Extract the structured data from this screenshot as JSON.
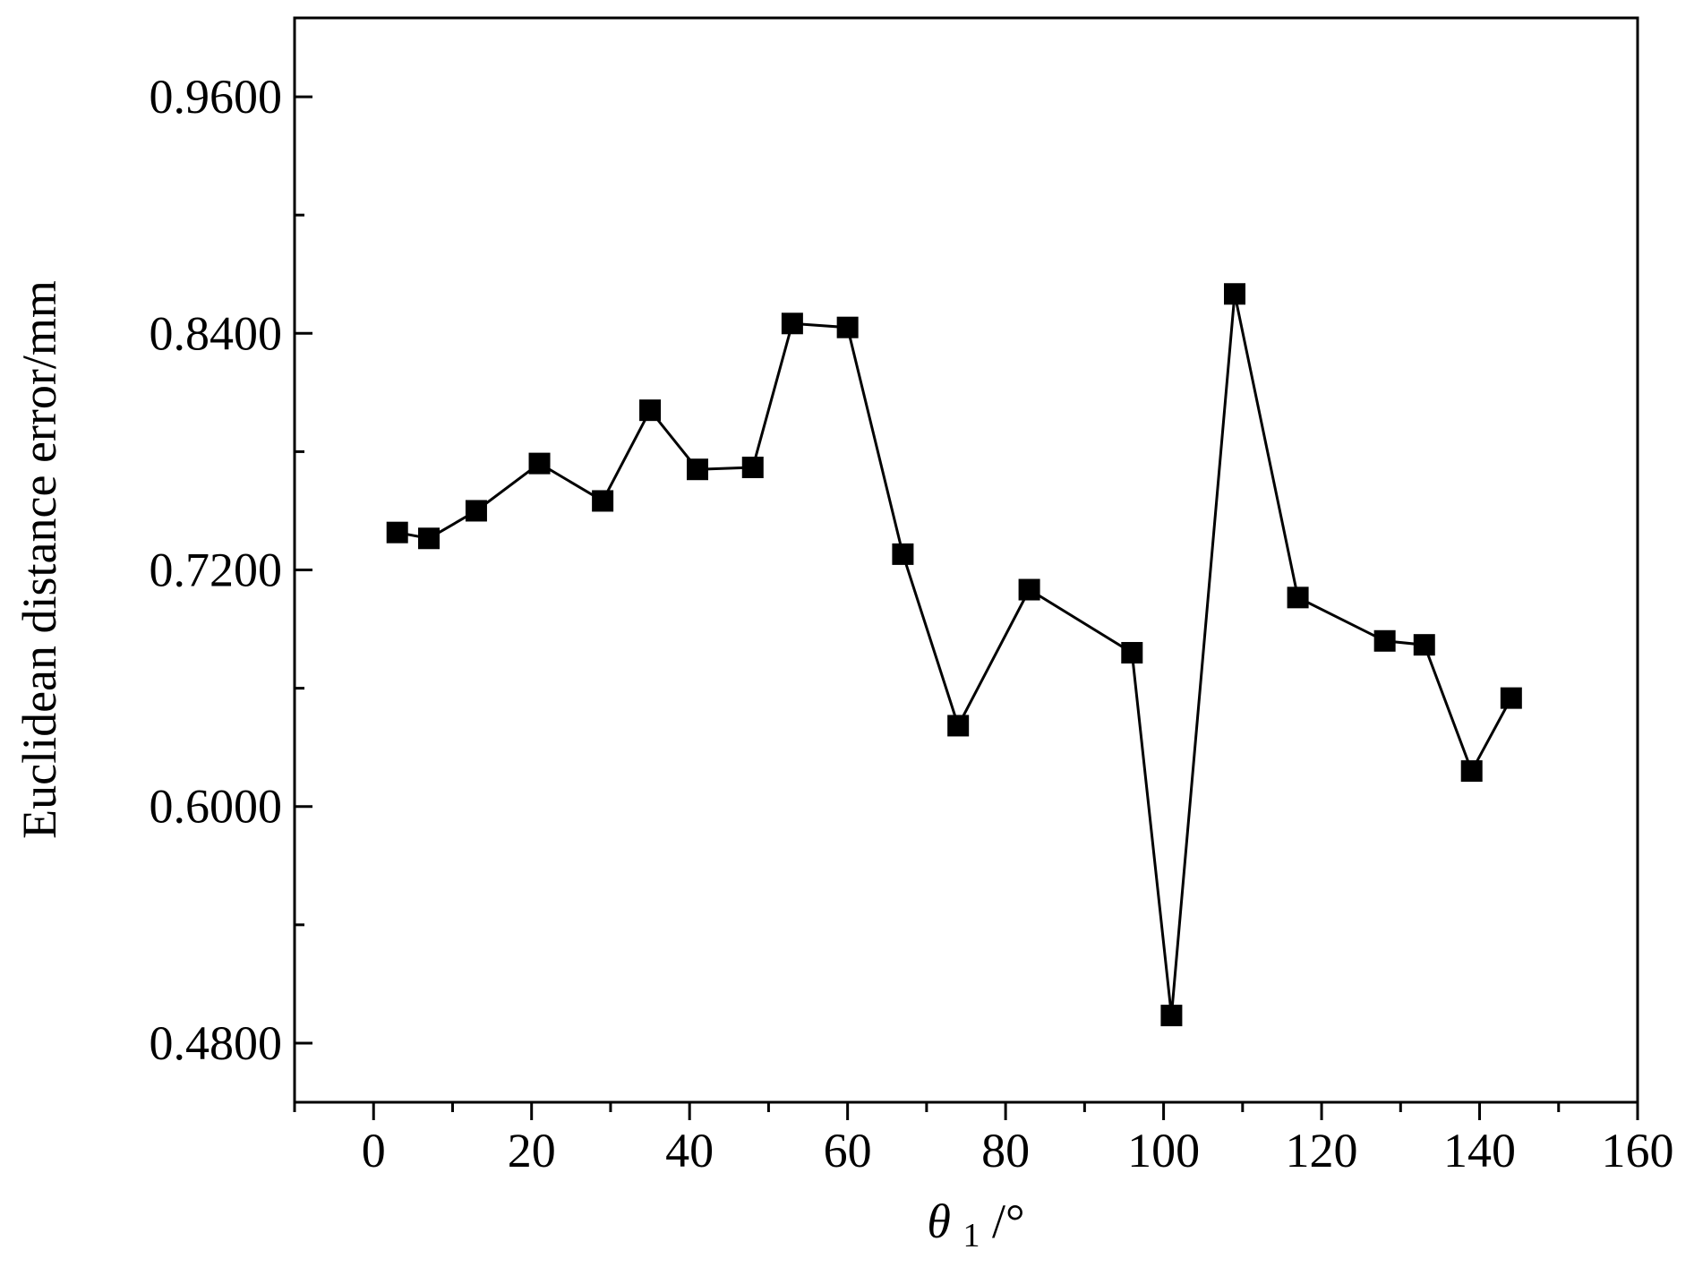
{
  "chart_data": {
    "type": "line",
    "title": "",
    "xlabel": {
      "symbol": "θ",
      "subscript": "1",
      "unit": "/°"
    },
    "ylabel": "Euclidean distance error/mm",
    "xlim": [
      -10,
      160
    ],
    "ylim": [
      0.45,
      1.0
    ],
    "x_ticks": [
      0,
      20,
      40,
      60,
      80,
      100,
      120,
      140,
      160
    ],
    "x_tick_labels": [
      "0",
      "20",
      "40",
      "60",
      "80",
      "100",
      "120",
      "140",
      "160"
    ],
    "x_minor_ticks": [
      -10,
      10,
      30,
      50,
      70,
      90,
      110,
      130,
      150
    ],
    "y_ticks": [
      0.48,
      0.6,
      0.72,
      0.84,
      0.96
    ],
    "y_tick_labels": [
      "0.4800",
      "0.6000",
      "0.7200",
      "0.8400",
      "0.9600"
    ],
    "y_minor_ticks": [
      0.54,
      0.66,
      0.78,
      0.9
    ],
    "grid": false,
    "legend": "none",
    "marker": "square",
    "color": "#000000",
    "series": [
      {
        "x": [
          3,
          7,
          13,
          21,
          29,
          35,
          41,
          48,
          53,
          60,
          67,
          74,
          83,
          96,
          101,
          109,
          117,
          128,
          133,
          139,
          144
        ],
        "values": [
          0.739,
          0.736,
          0.75,
          0.774,
          0.755,
          0.801,
          0.771,
          0.772,
          0.845,
          0.843,
          0.728,
          0.641,
          0.71,
          0.678,
          0.494,
          0.86,
          0.706,
          0.684,
          0.682,
          0.618,
          0.655
        ]
      }
    ]
  }
}
